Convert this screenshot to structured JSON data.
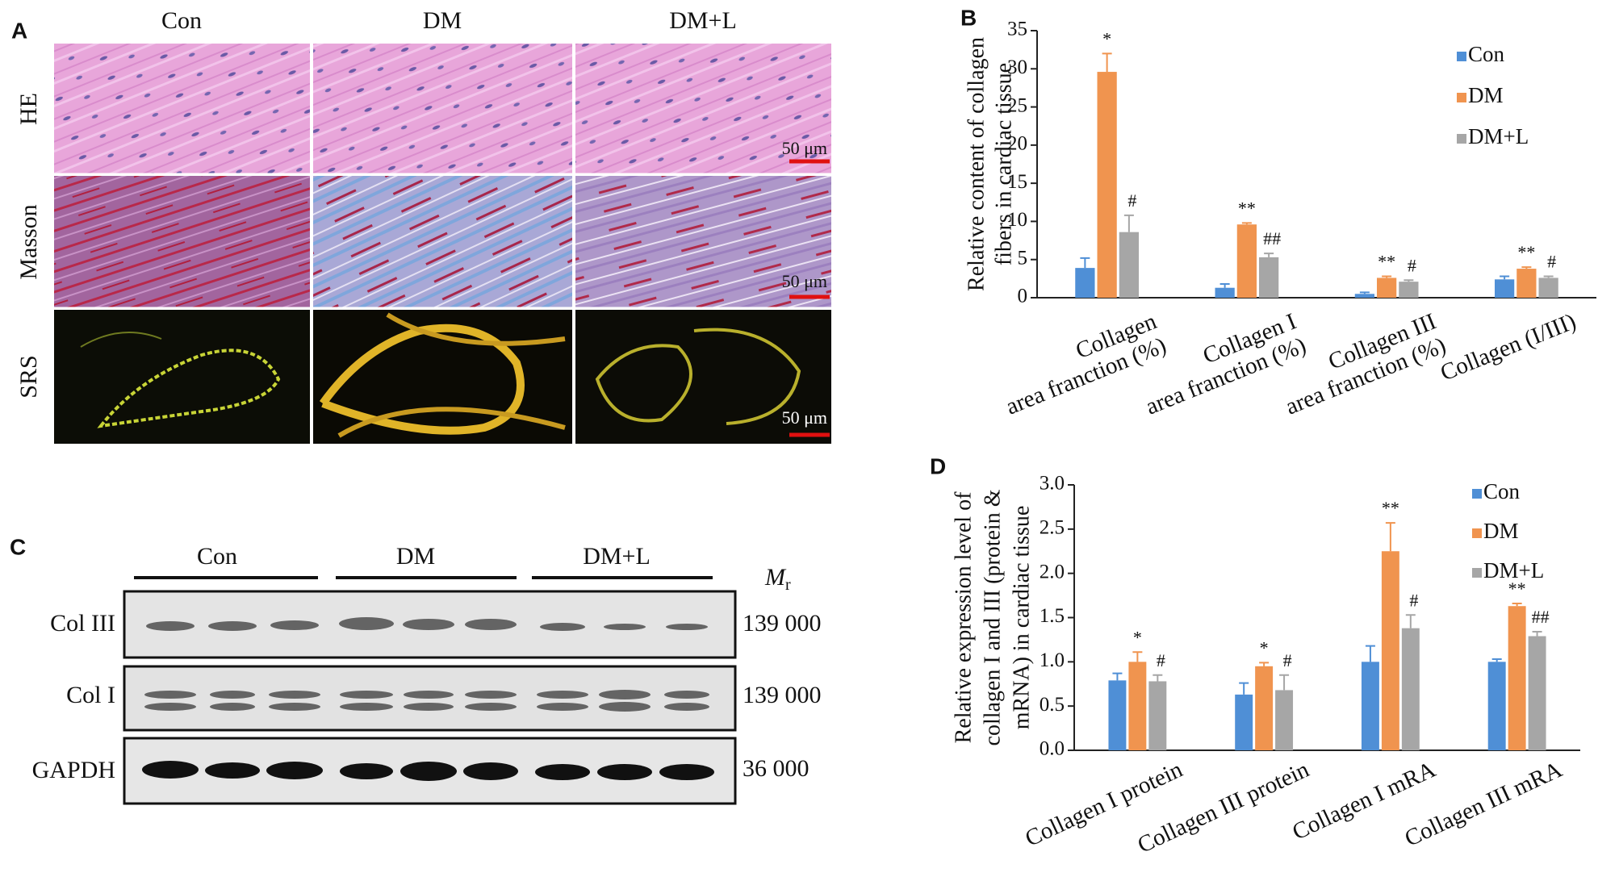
{
  "panel_a": {
    "label": "A",
    "columns": [
      "Con",
      "DM",
      "DM+L"
    ],
    "rows": [
      "HE",
      "Masson",
      "SRS"
    ],
    "scale_bar": "50 μm"
  },
  "panel_c": {
    "label": "C",
    "groups": [
      "Con",
      "DM",
      "DM+L"
    ],
    "mr_label": "M",
    "mr_sub": "r",
    "bands": [
      {
        "name": "Col III",
        "mr": "139 000"
      },
      {
        "name": "Col I",
        "mr": "139 000"
      },
      {
        "name": "GAPDH",
        "mr": "36 000"
      }
    ]
  },
  "chart_data": [
    {
      "type": "bar",
      "panel_label": "B",
      "ylabel": [
        "Relative content of collagen",
        "fibers in cardiac tissue"
      ],
      "categories": [
        [
          "Collagen",
          "area franction (%)"
        ],
        [
          "Collagen I",
          "area franction (%)"
        ],
        [
          "Collagen III",
          "area franction (%)"
        ],
        [
          "Collagen (I/III)"
        ]
      ],
      "series": [
        {
          "name": "Con",
          "color": "#4f8fd6",
          "values": [
            3.9,
            1.3,
            0.5,
            2.4
          ],
          "errors": [
            1.3,
            0.5,
            0.2,
            0.4
          ]
        },
        {
          "name": "DM",
          "color": "#f0944f",
          "values": [
            29.6,
            9.6,
            2.6,
            3.8
          ],
          "errors": [
            2.4,
            0.2,
            0.2,
            0.2
          ],
          "annotations": [
            "*",
            "**",
            "**",
            "**"
          ]
        },
        {
          "name": "DM+L",
          "color": "#a6a6a6",
          "values": [
            8.6,
            5.3,
            2.1,
            2.6
          ],
          "errors": [
            2.2,
            0.5,
            0.2,
            0.2
          ],
          "annotations": [
            "#",
            "##",
            "#",
            "#"
          ]
        }
      ],
      "ylim": [
        0,
        35
      ],
      "yticks": [
        0,
        5,
        10,
        15,
        20,
        25,
        30,
        35
      ],
      "legend": "upper right"
    },
    {
      "type": "bar",
      "panel_label": "D",
      "ylabel": [
        "Relative expression level of",
        "collagen I and III (protein &",
        "mRNA) in cardiac tissue"
      ],
      "categories": [
        [
          "Collagen I protein"
        ],
        [
          "Collagen III protein"
        ],
        [
          "Collagen I mRA"
        ],
        [
          "Collagen III mRA"
        ]
      ],
      "series": [
        {
          "name": "Con",
          "color": "#4f8fd6",
          "values": [
            0.79,
            0.63,
            1.0,
            1.0
          ],
          "errors": [
            0.08,
            0.13,
            0.18,
            0.03
          ]
        },
        {
          "name": "DM",
          "color": "#f0944f",
          "values": [
            1.0,
            0.95,
            2.25,
            1.63
          ],
          "errors": [
            0.11,
            0.04,
            0.32,
            0.03
          ],
          "annotations": [
            "*",
            "*",
            "**",
            "**"
          ]
        },
        {
          "name": "DM+L",
          "color": "#a6a6a6",
          "values": [
            0.78,
            0.68,
            1.38,
            1.29
          ],
          "errors": [
            0.07,
            0.17,
            0.15,
            0.05
          ],
          "annotations": [
            "#",
            "#",
            "#",
            "##"
          ]
        }
      ],
      "ylim": [
        0,
        3.0
      ],
      "yticks": [
        {
          "value": 0,
          "label": "0.0"
        },
        0.5,
        {
          "value": 1,
          "label": "1.0"
        },
        1.5,
        {
          "value": 2,
          "label": "2.0"
        },
        2.5,
        {
          "value": 3,
          "label": "3.0"
        }
      ],
      "legend": "upper right"
    }
  ]
}
